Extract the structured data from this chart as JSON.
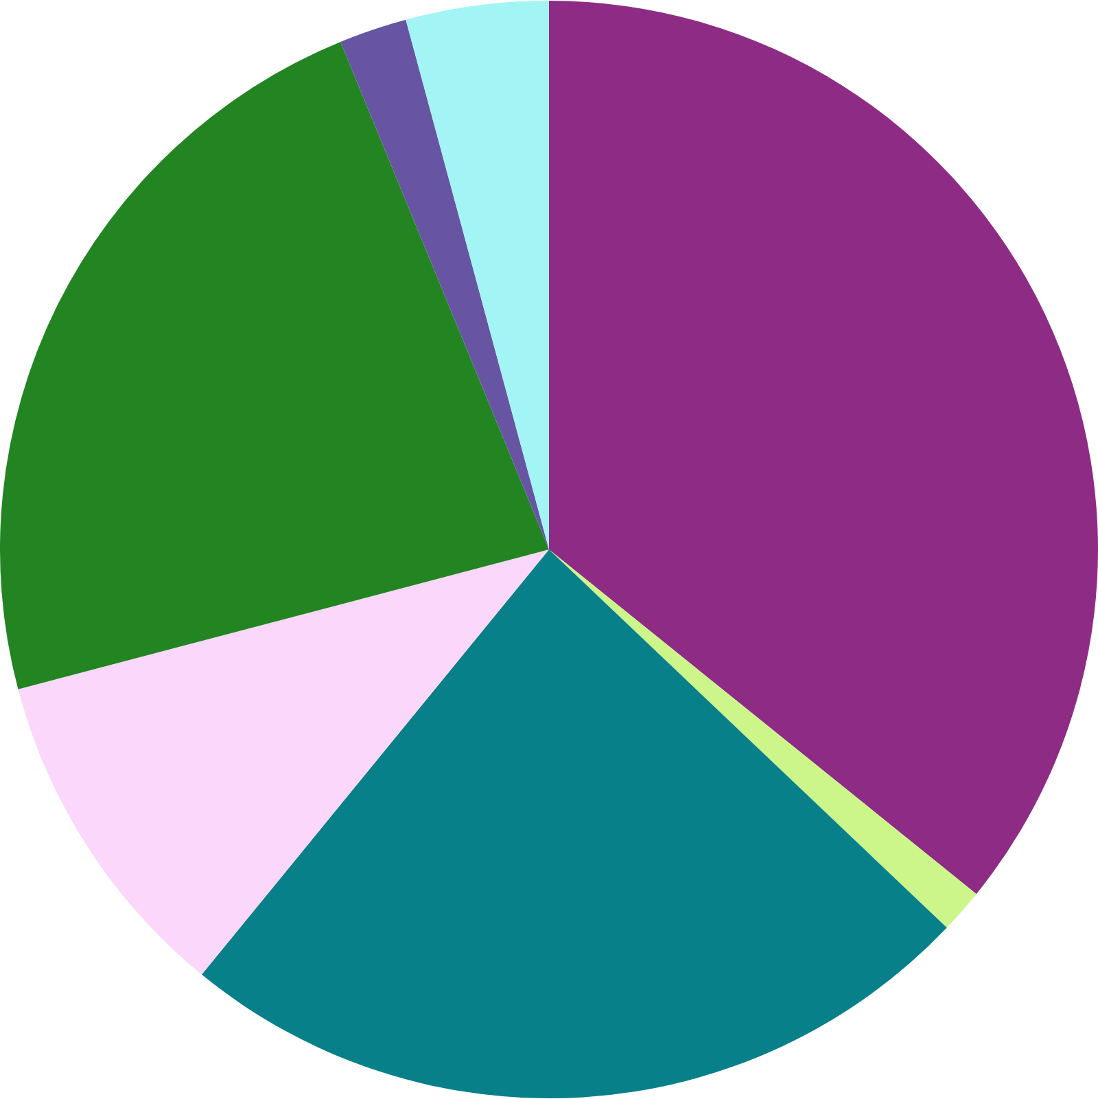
{
  "chart_data": {
    "type": "pie",
    "categories": [
      null,
      null,
      null,
      null,
      null,
      null,
      null
    ],
    "values": [
      35.8,
      1.3,
      23.8,
      10.0,
      22.9,
      2.0,
      4.2
    ],
    "colors": [
      "#8e2c85",
      "#ccf58a",
      "#078089",
      "#fbd7fb",
      "#228522",
      "#6755a3",
      "#a3f5f5"
    ]
  }
}
